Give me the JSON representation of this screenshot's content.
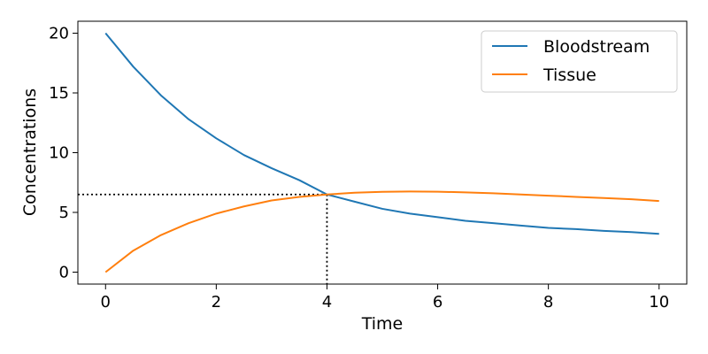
{
  "chart_data": {
    "type": "line",
    "title": "",
    "xlabel": "Time",
    "ylabel": "Concentrations",
    "xlim": [
      -0.5,
      10.5
    ],
    "ylim": [
      -1,
      21
    ],
    "xticks": [
      0,
      2,
      4,
      6,
      8,
      10
    ],
    "yticks": [
      0,
      5,
      10,
      15,
      20
    ],
    "grid": false,
    "legend_position": "top-right",
    "series": [
      {
        "name": "Bloodstream",
        "color": "#1f77b4",
        "x": [
          0,
          0.5,
          1,
          1.5,
          2,
          2.5,
          3,
          3.5,
          4,
          4.5,
          5,
          5.5,
          6,
          6.5,
          7,
          7.5,
          8,
          8.5,
          9,
          9.5,
          10
        ],
        "y": [
          20.0,
          17.2,
          14.8,
          12.8,
          11.2,
          9.8,
          8.7,
          7.7,
          6.5,
          5.9,
          5.3,
          4.9,
          4.6,
          4.3,
          4.1,
          3.9,
          3.7,
          3.6,
          3.45,
          3.35,
          3.2
        ]
      },
      {
        "name": "Tissue",
        "color": "#ff7f0e",
        "x": [
          0,
          0.5,
          1,
          1.5,
          2,
          2.5,
          3,
          3.5,
          4,
          4.5,
          5,
          5.5,
          6,
          6.5,
          7,
          7.5,
          8,
          8.5,
          9,
          9.5,
          10
        ],
        "y": [
          0.0,
          1.8,
          3.1,
          4.1,
          4.9,
          5.5,
          6.0,
          6.3,
          6.5,
          6.65,
          6.72,
          6.75,
          6.73,
          6.68,
          6.6,
          6.5,
          6.4,
          6.3,
          6.2,
          6.1,
          5.95
        ]
      }
    ],
    "annotations": [
      {
        "type": "dotted-guides",
        "x": 4,
        "y": 6.5,
        "color": "#000000"
      }
    ]
  }
}
